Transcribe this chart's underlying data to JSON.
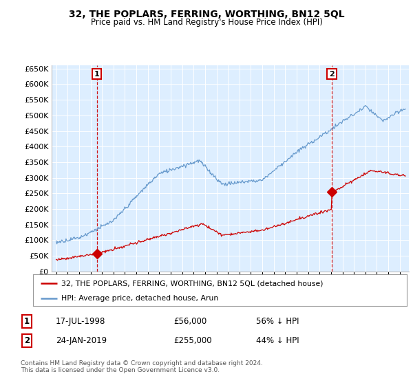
{
  "title": "32, THE POPLARS, FERRING, WORTHING, BN12 5QL",
  "subtitle": "Price paid vs. HM Land Registry's House Price Index (HPI)",
  "legend_line1": "32, THE POPLARS, FERRING, WORTHING, BN12 5QL (detached house)",
  "legend_line2": "HPI: Average price, detached house, Arun",
  "footnote": "Contains HM Land Registry data © Crown copyright and database right 2024.\nThis data is licensed under the Open Government Licence v3.0.",
  "sale1_date": "17-JUL-1998",
  "sale1_price": "£56,000",
  "sale1_pct": "56% ↓ HPI",
  "sale2_date": "24-JAN-2019",
  "sale2_price": "£255,000",
  "sale2_pct": "44% ↓ HPI",
  "red_color": "#cc0000",
  "blue_color": "#6699cc",
  "ylim": [
    0,
    660000
  ],
  "yticks": [
    0,
    50000,
    100000,
    150000,
    200000,
    250000,
    300000,
    350000,
    400000,
    450000,
    500000,
    550000,
    600000,
    650000
  ],
  "xlim_start": 1994.6,
  "xlim_end": 2025.8,
  "background_color": "#ddeeff",
  "sale1_x": 1998.54,
  "sale1_y": 56000,
  "sale2_x": 2019.07,
  "sale2_y": 255000
}
